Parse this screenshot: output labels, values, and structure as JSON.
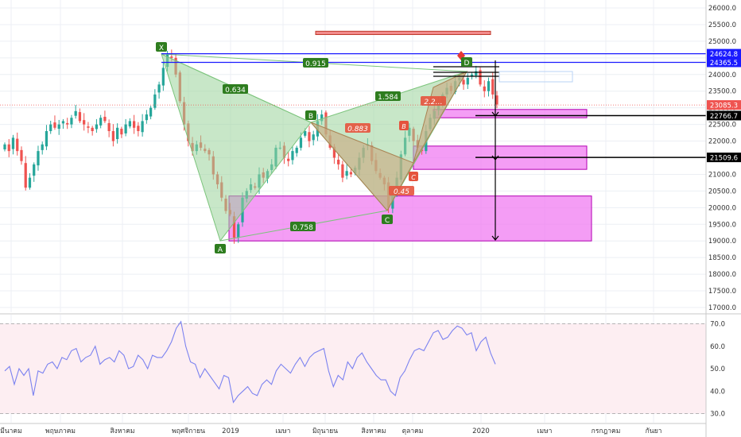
{
  "colors": {
    "up": "#26a69a",
    "down": "#ef5350",
    "grid": "#eceff4",
    "axis_text": "#333333",
    "pattern_green": "#9bd39b",
    "pattern_brown": "#c9a97e",
    "zone_fill": "#f07cf2",
    "zone_stroke": "#b300b3",
    "blue_line": "#1a1aff",
    "rsi_line": "#7b82f0",
    "rsi_band": "#fdeef2",
    "label_green": "#2e7d1f",
    "label_red": "#e5533d"
  },
  "chart_data": [
    {
      "type": "candlestick",
      "title": "",
      "ylim": [
        16750,
        26250
      ],
      "y_ticks": [
        "26000.0",
        "25500.0",
        "25000.0",
        "24500.0",
        "24000.0",
        "23500.0",
        "23000.0",
        "22500.0",
        "22000.0",
        "21500.0",
        "21000.0",
        "20500.0",
        "20000.0",
        "19500.0",
        "19000.0",
        "18500.0",
        "18000.0",
        "17500.0",
        "17000.0"
      ],
      "x_ticks": [
        "มีนาคม",
        "พฤษภาคม",
        "สิงหาคม",
        "พฤศจิกายน",
        "2019",
        "เมษา",
        "มิถุนายน",
        "สิงหาคม",
        "ตุลาคม",
        "2020",
        "เมษา",
        "กรกฎาคม",
        "กันยา"
      ],
      "grid": true,
      "close_series_approx": [
        21900,
        21700,
        22100,
        21700,
        21400,
        20600,
        20900,
        21300,
        21700,
        21900,
        22300,
        22500,
        22400,
        22500,
        22600,
        22500,
        22700,
        22900,
        22600,
        22500,
        22400,
        22300,
        22500,
        22700,
        22600,
        22300,
        22000,
        22400,
        22200,
        22500,
        22600,
        22400,
        22300,
        22600,
        22800,
        23000,
        23400,
        23700,
        24200,
        24600,
        24500,
        24000,
        23200,
        22500,
        22000,
        21700,
        21900,
        21800,
        21700,
        21600,
        21000,
        20700,
        20300,
        19900,
        19800,
        19100,
        19500,
        20300,
        20500,
        20700,
        20600,
        21000,
        20900,
        21100,
        21300,
        21800,
        21800,
        21500,
        21400,
        21700,
        21800,
        22100,
        22300,
        22000,
        22200,
        22600,
        22800,
        22200,
        21800,
        21500,
        21300,
        20900,
        21100,
        21000,
        21200,
        21500,
        21800,
        21900,
        21400,
        21100,
        20900,
        20700,
        20000,
        20400,
        20900,
        21600,
        22100,
        22400,
        22000,
        21800,
        21700,
        22300,
        22700,
        22900,
        23200,
        23400,
        23600,
        23500,
        23800,
        23900,
        23700,
        23900,
        24000,
        24100,
        23700,
        23500,
        23800,
        23400,
        23100
      ],
      "price_labels": [
        {
          "text": "24624.8",
          "value": 24624.8
        },
        {
          "text": "24365.5",
          "value": 24365.5
        },
        {
          "text": "23085.3",
          "value": 23085.3
        },
        {
          "text": "22766.7",
          "value": 22766.7
        },
        {
          "text": "21509.6",
          "value": 21509.6
        }
      ],
      "harmonic_pattern": {
        "points": [
          {
            "label": "X",
            "value": 24550
          },
          {
            "label": "A",
            "value": 19000
          },
          {
            "label": "B",
            "value": 22600
          },
          {
            "label": "C",
            "value": 19900
          },
          {
            "label": "D",
            "value": 24100
          }
        ],
        "ratios": [
          "0.634",
          "0.758",
          "1.584",
          "0.915"
        ],
        "inner_pattern": {
          "points": [
            "B",
            "C"
          ],
          "ratios": [
            "0.883",
            "0.45",
            "2.2…"
          ]
        }
      },
      "zones": [
        {
          "low": 19000,
          "high": 20350
        },
        {
          "low": 21150,
          "high": 21850
        },
        {
          "low": 22700,
          "high": 22950
        },
        {
          "low": 25200,
          "high": 25300
        }
      ]
    },
    {
      "type": "line",
      "title": "",
      "ylim": [
        28,
        72
      ],
      "y_ticks": [
        "70.0",
        "60.0",
        "50.0",
        "40.0",
        "30.0"
      ],
      "band": [
        30,
        70
      ],
      "series": [
        {
          "values": [
            49,
            51,
            43,
            50,
            47,
            50,
            38,
            49,
            48,
            52,
            53,
            50,
            55,
            54,
            58,
            59,
            53,
            55,
            56,
            60,
            52,
            54,
            55,
            53,
            58,
            56,
            50,
            51,
            56,
            54,
            50,
            56,
            55,
            55,
            58,
            62,
            68,
            71,
            60,
            53,
            52,
            46,
            50,
            47,
            44,
            41,
            47,
            46,
            35,
            38,
            40,
            42,
            39,
            38,
            43,
            45,
            43,
            49,
            52,
            50,
            48,
            52,
            55,
            51,
            55,
            57,
            58,
            59,
            49,
            42,
            47,
            45,
            53,
            50,
            55,
            57,
            53,
            50,
            47,
            45,
            45,
            40,
            38,
            46,
            49,
            54,
            58,
            59,
            58,
            62,
            66,
            67,
            63,
            64,
            67,
            69,
            68,
            65,
            66,
            58,
            62,
            64,
            57,
            52
          ]
        }
      ]
    }
  ]
}
